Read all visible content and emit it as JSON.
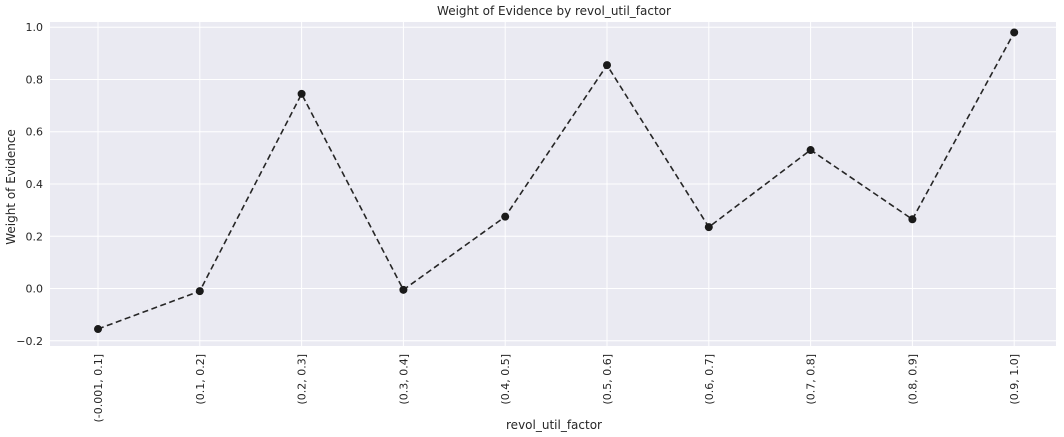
{
  "chart_data": {
    "type": "line",
    "title": "Weight of Evidence by revol_util_factor",
    "xlabel": "revol_util_factor",
    "ylabel": "Weight of Evidence",
    "categories": [
      "(-0.001, 0.1]",
      "(0.1, 0.2]",
      "(0.2, 0.3]",
      "(0.3, 0.4]",
      "(0.4, 0.5]",
      "(0.5, 0.6]",
      "(0.6, 0.7]",
      "(0.7, 0.8]",
      "(0.8, 0.9]",
      "(0.9, 1.0]"
    ],
    "series": [
      {
        "values": [
          -0.155,
          -0.01,
          0.745,
          -0.005,
          0.275,
          0.855,
          0.235,
          0.53,
          0.265,
          0.98
        ]
      }
    ],
    "yticks": [
      "−0.2",
      "0.0",
      "0.2",
      "0.4",
      "0.6",
      "0.8",
      "1.0"
    ],
    "ytick_values": [
      -0.2,
      0.0,
      0.2,
      0.4,
      0.6,
      0.8,
      1.0
    ],
    "ylim": [
      -0.22,
      1.02
    ],
    "grid": true,
    "line_style": "dashed",
    "marker": "circle",
    "colors": {
      "background": "#eaeaf2",
      "grid": "#ffffff",
      "line": "#262626",
      "marker": "#1a1a1a"
    }
  }
}
